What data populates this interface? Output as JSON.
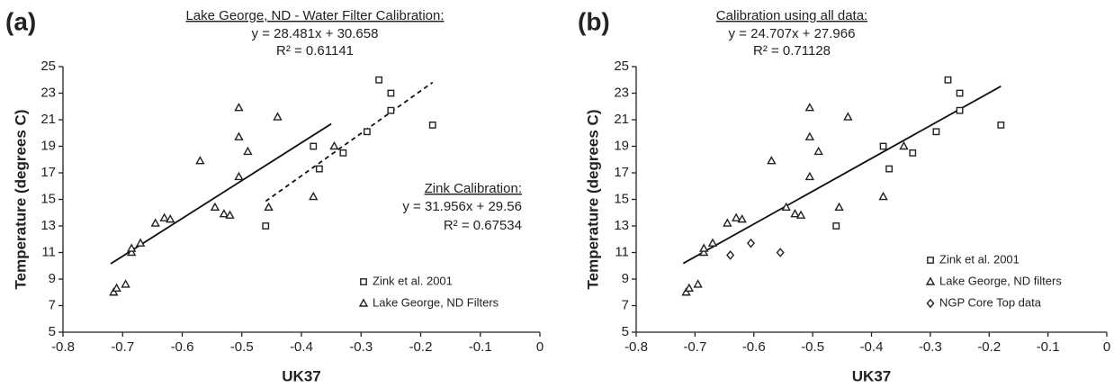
{
  "chart_data": [
    {
      "type": "scatter",
      "panel_label": "(a)",
      "title": "Lake George, ND - Water Filter Calibration:",
      "equation": "y = 28.481x + 30.658",
      "r2": "R² = 0.61141",
      "annotations": [
        {
          "title": "Zink Calibration:",
          "equation": "y = 31.956x + 29.56",
          "r2": "R² = 0.67534"
        }
      ],
      "xlabel": "UK37",
      "ylabel": "Temperature (degrees C)",
      "xlim": [
        -0.8,
        0
      ],
      "xticks": [
        -0.8,
        -0.7,
        -0.6,
        -0.5,
        -0.4,
        -0.3,
        -0.2,
        -0.1,
        0
      ],
      "ylim": [
        5,
        25
      ],
      "yticks": [
        5,
        7,
        9,
        11,
        13,
        15,
        17,
        19,
        21,
        23,
        25
      ],
      "grid": false,
      "legend": "lower right",
      "series": [
        {
          "name": "Zink et al. 2001",
          "marker": "square",
          "color": "#222222",
          "x": [
            -0.27,
            -0.25,
            -0.25,
            -0.29,
            -0.38,
            -0.37,
            -0.33,
            -0.46,
            -0.18
          ],
          "values": [
            24,
            23,
            21.7,
            20.1,
            19,
            17.3,
            18.5,
            13,
            20.6
          ]
        },
        {
          "name": "Lake George, ND Filters",
          "marker": "triangle",
          "color": "#222222",
          "x": [
            -0.715,
            -0.71,
            -0.695,
            -0.685,
            -0.685,
            -0.67,
            -0.645,
            -0.63,
            -0.62,
            -0.545,
            -0.53,
            -0.52,
            -0.57,
            -0.505,
            -0.505,
            -0.505,
            -0.49,
            -0.44,
            -0.455,
            -0.38,
            -0.345
          ],
          "values": [
            8.0,
            8.3,
            8.6,
            11.0,
            11.3,
            11.7,
            13.2,
            13.6,
            13.5,
            14.4,
            13.9,
            13.8,
            17.9,
            16.7,
            19.7,
            21.9,
            18.6,
            21.2,
            14.4,
            15.2,
            19.0
          ]
        }
      ],
      "trendlines": [
        {
          "x": [
            -0.72,
            -0.35
          ],
          "values": [
            10.15,
            20.69
          ],
          "dashed": false
        },
        {
          "x": [
            -0.46,
            -0.18
          ],
          "values": [
            14.86,
            23.81
          ],
          "dashed": true
        }
      ]
    },
    {
      "type": "scatter",
      "panel_label": "(b)",
      "title": "Calibration using all data:",
      "equation": "y = 24.707x + 27.966",
      "r2": "R² = 0.71128",
      "xlabel": "UK37",
      "ylabel": "Temperature (degrees C)",
      "xlim": [
        -0.8,
        0
      ],
      "xticks": [
        -0.8,
        -0.7,
        -0.6,
        -0.5,
        -0.4,
        -0.3,
        -0.2,
        -0.1,
        0
      ],
      "ylim": [
        5,
        25
      ],
      "yticks": [
        5,
        7,
        9,
        11,
        13,
        15,
        17,
        19,
        21,
        23,
        25
      ],
      "grid": false,
      "legend": "lower right",
      "series": [
        {
          "name": "Zink et al. 2001",
          "marker": "square",
          "color": "#222222",
          "x": [
            -0.27,
            -0.25,
            -0.25,
            -0.29,
            -0.38,
            -0.37,
            -0.33,
            -0.46,
            -0.18
          ],
          "values": [
            24,
            23,
            21.7,
            20.1,
            19,
            17.3,
            18.5,
            13,
            20.6
          ]
        },
        {
          "name": "Lake George, ND filters",
          "marker": "triangle",
          "color": "#222222",
          "x": [
            -0.715,
            -0.71,
            -0.695,
            -0.685,
            -0.685,
            -0.67,
            -0.645,
            -0.63,
            -0.62,
            -0.545,
            -0.53,
            -0.52,
            -0.57,
            -0.505,
            -0.505,
            -0.505,
            -0.49,
            -0.44,
            -0.455,
            -0.38,
            -0.345
          ],
          "values": [
            8.0,
            8.3,
            8.6,
            11.0,
            11.3,
            11.7,
            13.2,
            13.6,
            13.5,
            14.4,
            13.9,
            13.8,
            17.9,
            16.7,
            19.7,
            21.9,
            18.6,
            21.2,
            14.4,
            15.2,
            19.0
          ]
        },
        {
          "name": "NGP Core Top data",
          "marker": "diamond",
          "color": "#222222",
          "x": [
            -0.64,
            -0.605,
            -0.555
          ],
          "values": [
            10.8,
            11.7,
            11.0
          ]
        }
      ],
      "trendlines": [
        {
          "x": [
            -0.72,
            -0.18
          ],
          "values": [
            10.18,
            23.52
          ],
          "dashed": false
        }
      ]
    }
  ]
}
